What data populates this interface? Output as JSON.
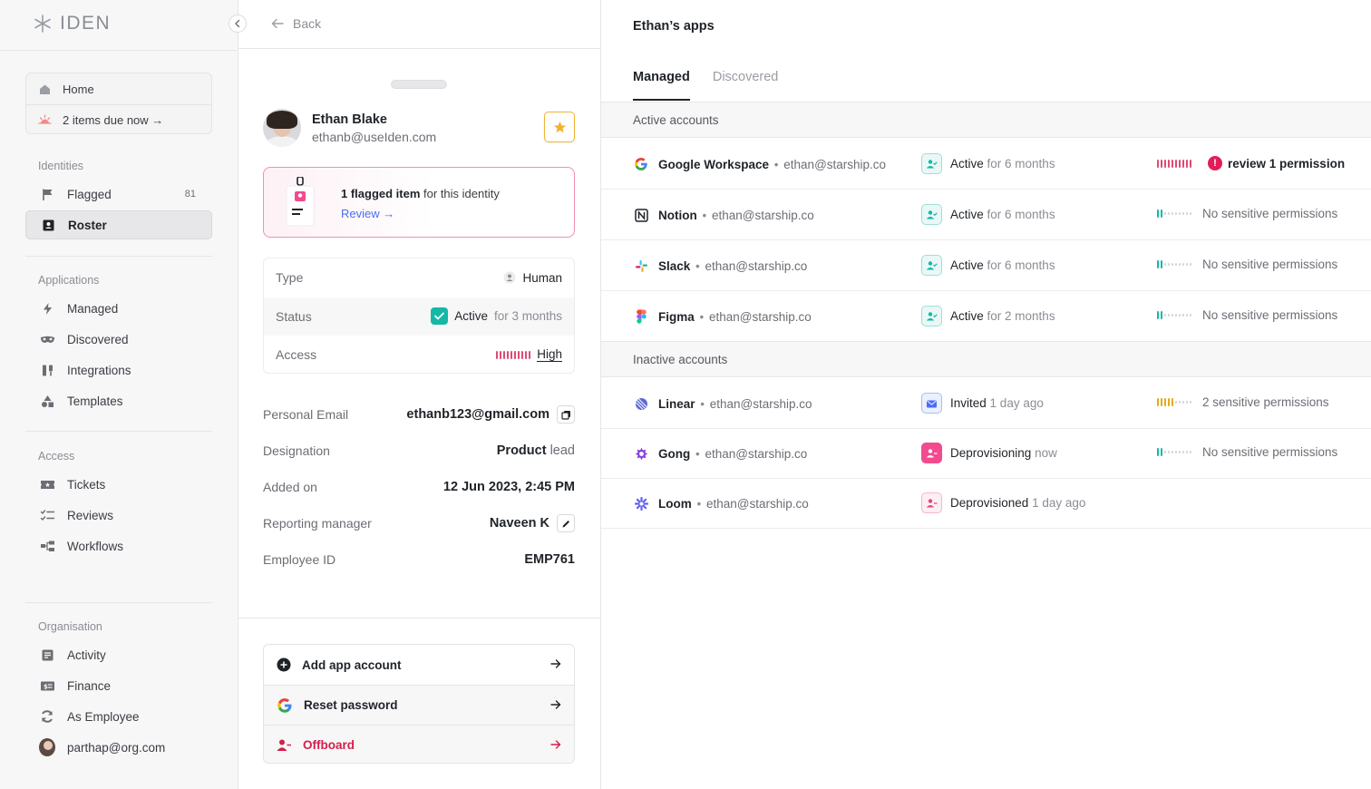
{
  "brand": {
    "logo_text": "IDEN"
  },
  "sidebar": {
    "home_label": "Home",
    "due_label": "2 items due now →",
    "sections": {
      "identities": "Identities",
      "applications": "Applications",
      "access": "Access",
      "organisation": "Organisation"
    },
    "items": {
      "flagged": {
        "label": "Flagged",
        "count": "81"
      },
      "roster": {
        "label": "Roster"
      },
      "managed": {
        "label": "Managed"
      },
      "discovered": {
        "label": "Discovered"
      },
      "integrations": {
        "label": "Integrations"
      },
      "templates": {
        "label": "Templates"
      },
      "tickets": {
        "label": "Tickets"
      },
      "reviews": {
        "label": "Reviews"
      },
      "workflows": {
        "label": "Workflows"
      },
      "activity": {
        "label": "Activity"
      },
      "finance": {
        "label": "Finance"
      },
      "as_employee": {
        "label": "As Employee"
      },
      "user": {
        "label": "parthap@org.com"
      }
    }
  },
  "identity": {
    "back_label": "Back",
    "name": "Ethan Blake",
    "email": "ethanb@useIden.com",
    "flag_count_text": "1 flagged item",
    "flag_suffix": " for this identity",
    "flag_link": "Review →",
    "info": {
      "type_label": "Type",
      "type_value": "Human",
      "status_label": "Status",
      "status_value": "Active",
      "status_sub": "for 3 months",
      "access_label": "Access",
      "access_value": "High"
    },
    "details": {
      "personal_email_label": "Personal Email",
      "personal_email_value": "ethanb123@gmail.com",
      "designation_label": "Designation",
      "designation_value": "Product",
      "designation_sub": "lead",
      "added_label": "Added on",
      "added_value": "12 Jun 2023, 2:45 PM",
      "manager_label": "Reporting manager",
      "manager_value": "Naveen K",
      "employee_id_label": "Employee ID",
      "employee_id_value": "EMP761"
    },
    "actions": {
      "add_app": "Add app account",
      "reset_password": "Reset password",
      "offboard": "Offboard"
    }
  },
  "apps_panel": {
    "title": "Ethan’s apps",
    "tabs": {
      "managed": "Managed",
      "discovered": "Discovered"
    },
    "active_header": "Active accounts",
    "inactive_header": "Inactive accounts",
    "active": [
      {
        "name": "Google Workspace",
        "email": "ethan@starship.co",
        "status": "Active",
        "status_sub": "for 6 months",
        "permission": "review 1 permission"
      },
      {
        "name": "Notion",
        "email": "ethan@starship.co",
        "status": "Active",
        "status_sub": "for 6 months",
        "permission": "No sensitive permissions"
      },
      {
        "name": "Slack",
        "email": "ethan@starship.co",
        "status": "Active",
        "status_sub": "for 6 months",
        "permission": "No sensitive permissions"
      },
      {
        "name": "Figma",
        "email": "ethan@starship.co",
        "status": "Active",
        "status_sub": "for 2 months",
        "permission": "No sensitive permissions"
      }
    ],
    "inactive": [
      {
        "name": "Linear",
        "email": "ethan@starship.co",
        "status": "Invited",
        "status_sub": "1 day ago",
        "permission": "2 sensitive permissions"
      },
      {
        "name": "Gong",
        "email": "ethan@starship.co",
        "status": "Deprovisioning",
        "status_sub": "now",
        "permission": "No sensitive permissions"
      },
      {
        "name": "Loom",
        "email": "ethan@starship.co",
        "status": "Deprovisioned",
        "status_sub": "1 day ago",
        "permission": ""
      }
    ]
  },
  "colors": {
    "accent_teal": "#14b8a6",
    "danger": "#d21f4b",
    "link": "#4a6cf7",
    "star": "#f2b233",
    "risk_high": "#e04a73",
    "risk_medium": "#e6a817",
    "risk_low": "#14b8a6"
  }
}
